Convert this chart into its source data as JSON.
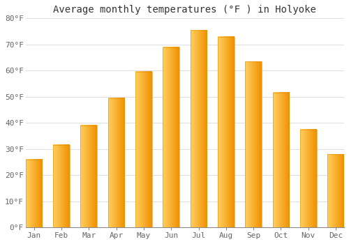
{
  "title": "Average monthly temperatures (°F ) in Holyoke",
  "months": [
    "Jan",
    "Feb",
    "Mar",
    "Apr",
    "May",
    "Jun",
    "Jul",
    "Aug",
    "Sep",
    "Oct",
    "Nov",
    "Dec"
  ],
  "values": [
    26.0,
    31.5,
    39.0,
    49.5,
    59.5,
    69.0,
    75.5,
    73.0,
    63.5,
    51.5,
    37.5,
    28.0
  ],
  "bar_color_main": "#FFAA00",
  "bar_color_left": "#FFD060",
  "bar_color_right": "#F09000",
  "background_color": "#FFFFFF",
  "plot_bg_color": "#FFFFFF",
  "grid_color": "#DDDDDD",
  "ylim": [
    0,
    80
  ],
  "yticks": [
    0,
    10,
    20,
    30,
    40,
    50,
    60,
    70,
    80
  ],
  "ytick_labels": [
    "0°F",
    "10°F",
    "20°F",
    "30°F",
    "40°F",
    "50°F",
    "60°F",
    "70°F",
    "80°F"
  ],
  "title_fontsize": 10,
  "tick_fontsize": 8,
  "font_family": "monospace",
  "bar_width": 0.6
}
